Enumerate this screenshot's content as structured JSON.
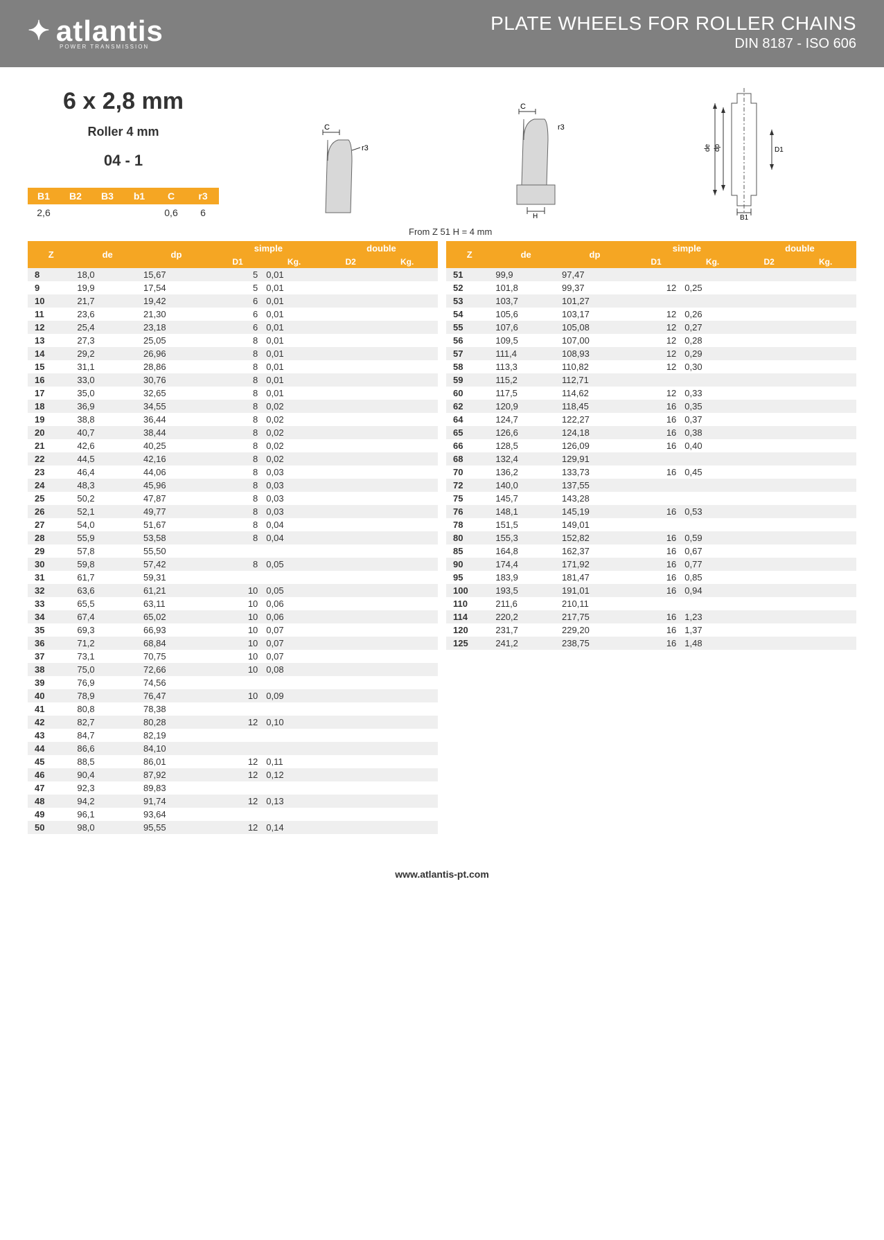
{
  "header": {
    "logo_text": "atlantis",
    "logo_sub": "POWER TRANSMISSION",
    "title": "PLATE WHEELS FOR ROLLER CHAINS",
    "subtitle": "DIN 8187 - ISO 606"
  },
  "spec": {
    "size": "6 x 2,8 mm",
    "roller": "Roller 4 mm",
    "code": "04 - 1"
  },
  "params": {
    "headers": [
      "B1",
      "B2",
      "B3",
      "b1",
      "C",
      "r3"
    ],
    "values": [
      "2,6",
      "",
      "",
      "",
      "0,6",
      "6"
    ]
  },
  "note": "From Z 51 H = 4 mm",
  "table_headers": {
    "z": "Z",
    "de": "de",
    "dp": "dp",
    "simple": "simple",
    "d1": "D1",
    "kg1": "Kg.",
    "double": "double",
    "d2": "D2",
    "kg2": "Kg."
  },
  "left_rows": [
    {
      "z": "8",
      "de": "18,0",
      "dp": "15,67",
      "d1": "5",
      "kg1": "0,01"
    },
    {
      "z": "9",
      "de": "19,9",
      "dp": "17,54",
      "d1": "5",
      "kg1": "0,01"
    },
    {
      "z": "10",
      "de": "21,7",
      "dp": "19,42",
      "d1": "6",
      "kg1": "0,01"
    },
    {
      "z": "11",
      "de": "23,6",
      "dp": "21,30",
      "d1": "6",
      "kg1": "0,01"
    },
    {
      "z": "12",
      "de": "25,4",
      "dp": "23,18",
      "d1": "6",
      "kg1": "0,01"
    },
    {
      "z": "13",
      "de": "27,3",
      "dp": "25,05",
      "d1": "8",
      "kg1": "0,01"
    },
    {
      "z": "14",
      "de": "29,2",
      "dp": "26,96",
      "d1": "8",
      "kg1": "0,01"
    },
    {
      "z": "15",
      "de": "31,1",
      "dp": "28,86",
      "d1": "8",
      "kg1": "0,01"
    },
    {
      "z": "16",
      "de": "33,0",
      "dp": "30,76",
      "d1": "8",
      "kg1": "0,01"
    },
    {
      "z": "17",
      "de": "35,0",
      "dp": "32,65",
      "d1": "8",
      "kg1": "0,01"
    },
    {
      "z": "18",
      "de": "36,9",
      "dp": "34,55",
      "d1": "8",
      "kg1": "0,02"
    },
    {
      "z": "19",
      "de": "38,8",
      "dp": "36,44",
      "d1": "8",
      "kg1": "0,02"
    },
    {
      "z": "20",
      "de": "40,7",
      "dp": "38,44",
      "d1": "8",
      "kg1": "0,02"
    },
    {
      "z": "21",
      "de": "42,6",
      "dp": "40,25",
      "d1": "8",
      "kg1": "0,02"
    },
    {
      "z": "22",
      "de": "44,5",
      "dp": "42,16",
      "d1": "8",
      "kg1": "0,02"
    },
    {
      "z": "23",
      "de": "46,4",
      "dp": "44,06",
      "d1": "8",
      "kg1": "0,03"
    },
    {
      "z": "24",
      "de": "48,3",
      "dp": "45,96",
      "d1": "8",
      "kg1": "0,03"
    },
    {
      "z": "25",
      "de": "50,2",
      "dp": "47,87",
      "d1": "8",
      "kg1": "0,03"
    },
    {
      "z": "26",
      "de": "52,1",
      "dp": "49,77",
      "d1": "8",
      "kg1": "0,03"
    },
    {
      "z": "27",
      "de": "54,0",
      "dp": "51,67",
      "d1": "8",
      "kg1": "0,04"
    },
    {
      "z": "28",
      "de": "55,9",
      "dp": "53,58",
      "d1": "8",
      "kg1": "0,04"
    },
    {
      "z": "29",
      "de": "57,8",
      "dp": "55,50"
    },
    {
      "z": "30",
      "de": "59,8",
      "dp": "57,42",
      "d1": "8",
      "kg1": "0,05"
    },
    {
      "z": "31",
      "de": "61,7",
      "dp": "59,31"
    },
    {
      "z": "32",
      "de": "63,6",
      "dp": "61,21",
      "d1": "10",
      "kg1": "0,05"
    },
    {
      "z": "33",
      "de": "65,5",
      "dp": "63,11",
      "d1": "10",
      "kg1": "0,06"
    },
    {
      "z": "34",
      "de": "67,4",
      "dp": "65,02",
      "d1": "10",
      "kg1": "0,06"
    },
    {
      "z": "35",
      "de": "69,3",
      "dp": "66,93",
      "d1": "10",
      "kg1": "0,07"
    },
    {
      "z": "36",
      "de": "71,2",
      "dp": "68,84",
      "d1": "10",
      "kg1": "0,07"
    },
    {
      "z": "37",
      "de": "73,1",
      "dp": "70,75",
      "d1": "10",
      "kg1": "0,07"
    },
    {
      "z": "38",
      "de": "75,0",
      "dp": "72,66",
      "d1": "10",
      "kg1": "0,08"
    },
    {
      "z": "39",
      "de": "76,9",
      "dp": "74,56"
    },
    {
      "z": "40",
      "de": "78,9",
      "dp": "76,47",
      "d1": "10",
      "kg1": "0,09"
    },
    {
      "z": "41",
      "de": "80,8",
      "dp": "78,38"
    },
    {
      "z": "42",
      "de": "82,7",
      "dp": "80,28",
      "d1": "12",
      "kg1": "0,10"
    },
    {
      "z": "43",
      "de": "84,7",
      "dp": "82,19"
    },
    {
      "z": "44",
      "de": "86,6",
      "dp": "84,10"
    },
    {
      "z": "45",
      "de": "88,5",
      "dp": "86,01",
      "d1": "12",
      "kg1": "0,11"
    },
    {
      "z": "46",
      "de": "90,4",
      "dp": "87,92",
      "d1": "12",
      "kg1": "0,12"
    },
    {
      "z": "47",
      "de": "92,3",
      "dp": "89,83"
    },
    {
      "z": "48",
      "de": "94,2",
      "dp": "91,74",
      "d1": "12",
      "kg1": "0,13"
    },
    {
      "z": "49",
      "de": "96,1",
      "dp": "93,64"
    },
    {
      "z": "50",
      "de": "98,0",
      "dp": "95,55",
      "d1": "12",
      "kg1": "0,14"
    }
  ],
  "right_rows": [
    {
      "z": "51",
      "de": "99,9",
      "dp": "97,47"
    },
    {
      "z": "52",
      "de": "101,8",
      "dp": "99,37",
      "d1": "12",
      "kg1": "0,25"
    },
    {
      "z": "53",
      "de": "103,7",
      "dp": "101,27"
    },
    {
      "z": "54",
      "de": "105,6",
      "dp": "103,17",
      "d1": "12",
      "kg1": "0,26"
    },
    {
      "z": "55",
      "de": "107,6",
      "dp": "105,08",
      "d1": "12",
      "kg1": "0,27"
    },
    {
      "z": "56",
      "de": "109,5",
      "dp": "107,00",
      "d1": "12",
      "kg1": "0,28"
    },
    {
      "z": "57",
      "de": "111,4",
      "dp": "108,93",
      "d1": "12",
      "kg1": "0,29"
    },
    {
      "z": "58",
      "de": "113,3",
      "dp": "110,82",
      "d1": "12",
      "kg1": "0,30"
    },
    {
      "z": "59",
      "de": "115,2",
      "dp": "112,71"
    },
    {
      "z": "60",
      "de": "117,5",
      "dp": "114,62",
      "d1": "12",
      "kg1": "0,33"
    },
    {
      "z": "62",
      "de": "120,9",
      "dp": "118,45",
      "d1": "16",
      "kg1": "0,35"
    },
    {
      "z": "64",
      "de": "124,7",
      "dp": "122,27",
      "d1": "16",
      "kg1": "0,37"
    },
    {
      "z": "65",
      "de": "126,6",
      "dp": "124,18",
      "d1": "16",
      "kg1": "0,38"
    },
    {
      "z": "66",
      "de": "128,5",
      "dp": "126,09",
      "d1": "16",
      "kg1": "0,40"
    },
    {
      "z": "68",
      "de": "132,4",
      "dp": "129,91"
    },
    {
      "z": "70",
      "de": "136,2",
      "dp": "133,73",
      "d1": "16",
      "kg1": "0,45"
    },
    {
      "z": "72",
      "de": "140,0",
      "dp": "137,55"
    },
    {
      "z": "75",
      "de": "145,7",
      "dp": "143,28"
    },
    {
      "z": "76",
      "de": "148,1",
      "dp": "145,19",
      "d1": "16",
      "kg1": "0,53"
    },
    {
      "z": "78",
      "de": "151,5",
      "dp": "149,01"
    },
    {
      "z": "80",
      "de": "155,3",
      "dp": "152,82",
      "d1": "16",
      "kg1": "0,59"
    },
    {
      "z": "85",
      "de": "164,8",
      "dp": "162,37",
      "d1": "16",
      "kg1": "0,67"
    },
    {
      "z": "90",
      "de": "174,4",
      "dp": "171,92",
      "d1": "16",
      "kg1": "0,77"
    },
    {
      "z": "95",
      "de": "183,9",
      "dp": "181,47",
      "d1": "16",
      "kg1": "0,85"
    },
    {
      "z": "100",
      "de": "193,5",
      "dp": "191,01",
      "d1": "16",
      "kg1": "0,94"
    },
    {
      "z": "110",
      "de": "211,6",
      "dp": "210,11"
    },
    {
      "z": "114",
      "de": "220,2",
      "dp": "217,75",
      "d1": "16",
      "kg1": "1,23"
    },
    {
      "z": "120",
      "de": "231,7",
      "dp": "229,20",
      "d1": "16",
      "kg1": "1,37"
    },
    {
      "z": "125",
      "de": "241,2",
      "dp": "238,75",
      "d1": "16",
      "kg1": "1,48"
    }
  ],
  "footer": "www.atlantis-pt.com",
  "colors": {
    "header_bg": "#808080",
    "accent": "#f5a623",
    "row_alt": "#efefef"
  }
}
